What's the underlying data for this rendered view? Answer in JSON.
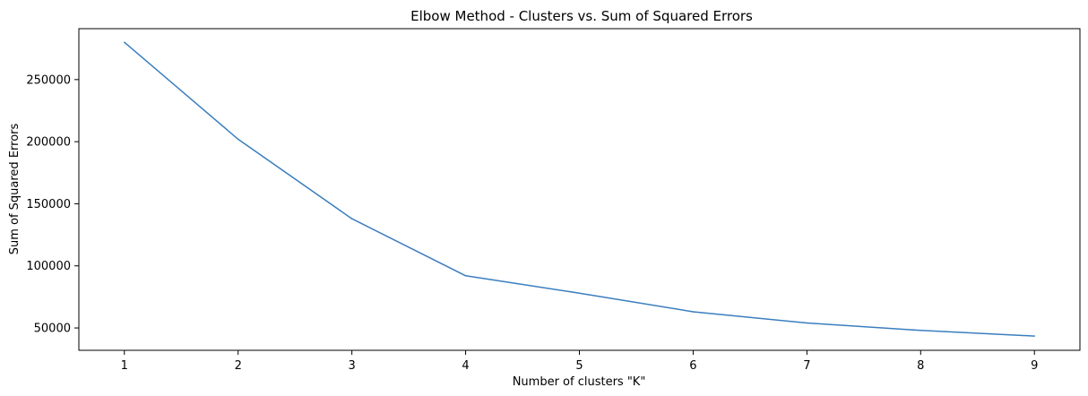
{
  "chart_data": {
    "type": "line",
    "title": "Elbow Method - Clusters vs. Sum of Squared Errors",
    "xlabel": "Number of clusters \"K\"",
    "ylabel": "Sum of Squared Errors",
    "x": [
      1,
      2,
      3,
      4,
      5,
      6,
      7,
      8,
      9
    ],
    "series": [
      {
        "values": [
          280000,
          202000,
          138000,
          92000,
          78000,
          63000,
          54000,
          48000,
          43500
        ]
      }
    ],
    "xlim": [
      0.6,
      9.4
    ],
    "ylim": [
      32000,
      291000
    ],
    "xticks": [
      {
        "value": 1,
        "label": "1"
      },
      {
        "value": 2,
        "label": "2"
      },
      {
        "value": 3,
        "label": "3"
      },
      {
        "value": 4,
        "label": "4"
      },
      {
        "value": 5,
        "label": "5"
      },
      {
        "value": 6,
        "label": "6"
      },
      {
        "value": 7,
        "label": "7"
      },
      {
        "value": 8,
        "label": "8"
      },
      {
        "value": 9,
        "label": "9"
      }
    ],
    "yticks": [
      {
        "value": 50000,
        "label": "50000"
      },
      {
        "value": 100000,
        "label": "100000"
      },
      {
        "value": 150000,
        "label": "150000"
      },
      {
        "value": 200000,
        "label": "200000"
      },
      {
        "value": 250000,
        "label": "250000"
      }
    ],
    "grid": false,
    "line_color": "#3a7ebf"
  }
}
